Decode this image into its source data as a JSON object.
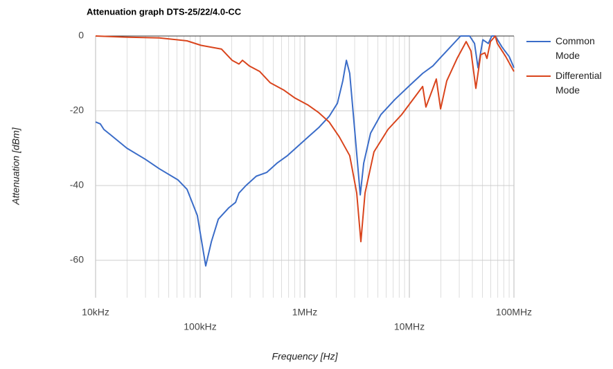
{
  "chart_data": {
    "type": "line",
    "title": "Attenuation graph DTS-25/22/4.0-CC",
    "x_label": "Frequency [Hz]",
    "y_label": "Attenuation [dBm]",
    "log_x": true,
    "grid": true,
    "legend": "right",
    "xlim": [
      10000,
      100000000
    ],
    "ylim": [
      -70,
      0
    ],
    "xticks": [
      {
        "value": 10000,
        "label": "10kHz"
      },
      {
        "value": 100000,
        "label": "100kHz"
      },
      {
        "value": 1000000,
        "label": "1MHz"
      },
      {
        "value": 10000000,
        "label": "10MHz"
      },
      {
        "value": 100000000,
        "label": "100MHz"
      }
    ],
    "xminorticks": [
      20000,
      30000,
      40000,
      50000,
      60000,
      70000,
      80000,
      90000,
      200000,
      300000,
      400000,
      500000,
      600000,
      700000,
      800000,
      900000,
      2000000,
      3000000,
      4000000,
      5000000,
      6000000,
      7000000,
      8000000,
      9000000,
      20000000,
      30000000,
      40000000,
      50000000,
      60000000,
      70000000,
      80000000,
      90000000
    ],
    "yticks": [
      0,
      -20,
      -40,
      -60
    ],
    "series": [
      {
        "name": "Common Mode",
        "color": "#3a6cc8",
        "x": [
          10000,
          11100,
          12000,
          14000,
          19900,
          30000,
          40600,
          61400,
          74800,
          94000,
          113000,
          128000,
          149000,
          187000,
          218000,
          235000,
          274000,
          344000,
          432000,
          543000,
          683000,
          859000,
          1080000,
          1360000,
          1710000,
          2050000,
          2310000,
          2500000,
          2690000,
          3000000,
          3390000,
          3660000,
          4260000,
          5350000,
          7260000,
          9840000,
          13400000,
          16800000,
          19500000,
          24600000,
          30900000,
          37700000,
          42000000,
          45300000,
          50400000,
          56900000,
          61400000,
          66300000,
          77100000,
          90000000,
          100000000
        ],
        "values": [
          -23,
          -23.5,
          -25,
          -26.5,
          -30,
          -33,
          -35.5,
          -38.5,
          -41,
          -48,
          -61.5,
          -55,
          -49,
          -46,
          -44.5,
          -42,
          -40,
          -37.5,
          -36.5,
          -34,
          -32,
          -29.5,
          -27,
          -24.5,
          -21.5,
          -18,
          -12,
          -6.5,
          -10,
          -25,
          -42.5,
          -34,
          -26,
          -21,
          -17,
          -13.5,
          -10,
          -8,
          -6,
          -3,
          0,
          0,
          -2,
          -8.5,
          -1,
          -2,
          0,
          0,
          -3,
          -5.5,
          -8.5
        ]
      },
      {
        "name": "Differential Mode",
        "color": "#d9441c",
        "x": [
          10000,
          19000,
          40600,
          74800,
          102000,
          160000,
          202000,
          235000,
          254000,
          295000,
          371000,
          467000,
          633000,
          796000,
          1080000,
          1360000,
          1710000,
          2140000,
          2690000,
          3140000,
          3440000,
          3770000,
          4590000,
          6240000,
          8450000,
          11500000,
          13400000,
          14400000,
          16800000,
          18100000,
          19900000,
          22800000,
          28600000,
          34900000,
          38800000,
          43200000,
          48100000,
          52700000,
          55200000,
          59600000,
          66300000,
          69300000,
          83400000,
          100000000
        ],
        "values": [
          0,
          -0.3,
          -0.5,
          -1.3,
          -2.5,
          -3.5,
          -6.5,
          -7.5,
          -6.5,
          -8,
          -9.5,
          -12.5,
          -14.5,
          -16.5,
          -18.5,
          -20.5,
          -23,
          -27,
          -32,
          -42,
          -55,
          -42,
          -31,
          -25,
          -21,
          -16,
          -13.5,
          -19,
          -14,
          -11.5,
          -19.5,
          -12,
          -6,
          -1.5,
          -4,
          -14,
          -5,
          -4.5,
          -6,
          -1.5,
          0,
          -2,
          -5.5,
          -9.5
        ]
      }
    ]
  }
}
